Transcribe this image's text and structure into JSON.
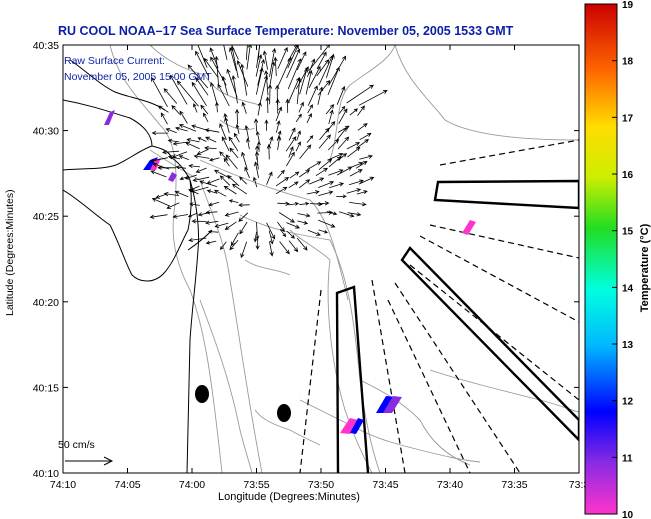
{
  "title": "RU COOL  NOAA–17  Sea Surface Temperature:  November 05, 2005 1533 GMT",
  "legend": {
    "line1": "Raw Surface Current:",
    "line2": "November 05, 2005 15:00 GMT",
    "scale_label": "50 cm/s"
  },
  "axes": {
    "xlabel": "Longitude (Degrees:Minutes)",
    "ylabel": "Latitude (Degrees:Minutes)",
    "x_ticks": [
      "74:10",
      "74:05",
      "74:00",
      "73:55",
      "73:50",
      "73:45",
      "73:40",
      "73:35",
      "73:3"
    ],
    "y_ticks": [
      "40:35",
      "40:30",
      "40:25",
      "40:20",
      "40:15",
      "40:10"
    ]
  },
  "colorbar": {
    "label": "Temperature (°C)",
    "min": 10,
    "max": 19,
    "ticks": [
      "19",
      "18",
      "17",
      "16",
      "15",
      "14",
      "13",
      "12",
      "11",
      "10"
    ]
  },
  "colors": {
    "title": "#0a1fa8",
    "frame": "#000000",
    "contour": "#9a9a9a",
    "coast": "#000000"
  }
}
